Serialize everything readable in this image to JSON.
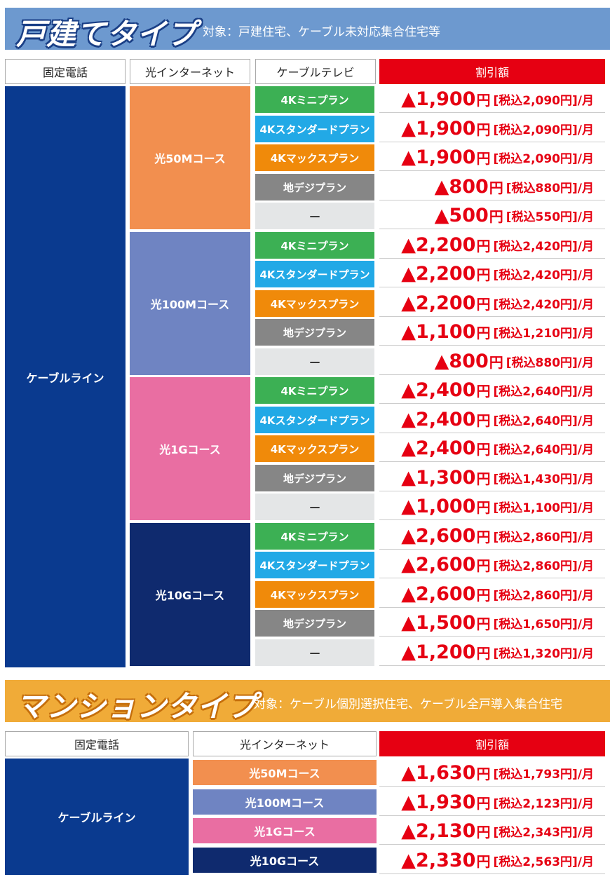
{
  "detached": {
    "title": "戸建てタイプ",
    "subtitle": "対象：戸建住宅、ケーブル未対応集合住宅等",
    "headers": [
      "固定電話",
      "光インターネット",
      "ケーブルテレビ",
      "割引額"
    ],
    "phone": "ケーブルライン",
    "courses": [
      {
        "name": "光50Mコース",
        "color": "#f28f4f",
        "rows": [
          {
            "plan": "4Kミニプラン",
            "style": "green",
            "amount": "▲1,900",
            "yen": "円",
            "tax": "[税込2,090円]/月"
          },
          {
            "plan": "4Kスタンダードプラン",
            "style": "cyan",
            "amount": "▲1,900",
            "yen": "円",
            "tax": "[税込2,090円]/月"
          },
          {
            "plan": "4Kマックスプラン",
            "style": "orange",
            "amount": "▲1,900",
            "yen": "円",
            "tax": "[税込2,090円]/月"
          },
          {
            "plan": "地デジプラン",
            "style": "gray",
            "amount": "▲800",
            "yen": "円",
            "tax": "[税込880円]/月"
          },
          {
            "plan": "—",
            "style": "light",
            "amount": "▲500",
            "yen": "円",
            "tax": "[税込550円]/月"
          }
        ]
      },
      {
        "name": "光100Mコース",
        "color": "#6f84c2",
        "rows": [
          {
            "plan": "4Kミニプラン",
            "style": "green",
            "amount": "▲2,200",
            "yen": "円",
            "tax": "[税込2,420円]/月"
          },
          {
            "plan": "4Kスタンダードプラン",
            "style": "cyan",
            "amount": "▲2,200",
            "yen": "円",
            "tax": "[税込2,420円]/月"
          },
          {
            "plan": "4Kマックスプラン",
            "style": "orange",
            "amount": "▲2,200",
            "yen": "円",
            "tax": "[税込2,420円]/月"
          },
          {
            "plan": "地デジプラン",
            "style": "gray",
            "amount": "▲1,100",
            "yen": "円",
            "tax": "[税込1,210円]/月"
          },
          {
            "plan": "—",
            "style": "light",
            "amount": "▲800",
            "yen": "円",
            "tax": "[税込880円]/月"
          }
        ]
      },
      {
        "name": "光1Gコース",
        "color": "#e96ea2",
        "rows": [
          {
            "plan": "4Kミニプラン",
            "style": "green",
            "amount": "▲2,400",
            "yen": "円",
            "tax": "[税込2,640円]/月"
          },
          {
            "plan": "4Kスタンダードプラン",
            "style": "cyan",
            "amount": "▲2,400",
            "yen": "円",
            "tax": "[税込2,640円]/月"
          },
          {
            "plan": "4Kマックスプラン",
            "style": "orange",
            "amount": "▲2,400",
            "yen": "円",
            "tax": "[税込2,640円]/月"
          },
          {
            "plan": "地デジプラン",
            "style": "gray",
            "amount": "▲1,300",
            "yen": "円",
            "tax": "[税込1,430円]/月"
          },
          {
            "plan": "—",
            "style": "light",
            "amount": "▲1,000",
            "yen": "円",
            "tax": "[税込1,100円]/月"
          }
        ]
      },
      {
        "name": "光10Gコース",
        "color": "#0f2a6e",
        "rows": [
          {
            "plan": "4Kミニプラン",
            "style": "green",
            "amount": "▲2,600",
            "yen": "円",
            "tax": "[税込2,860円]/月"
          },
          {
            "plan": "4Kスタンダードプラン",
            "style": "cyan",
            "amount": "▲2,600",
            "yen": "円",
            "tax": "[税込2,860円]/月"
          },
          {
            "plan": "4Kマックスプラン",
            "style": "orange",
            "amount": "▲2,600",
            "yen": "円",
            "tax": "[税込2,860円]/月"
          },
          {
            "plan": "地デジプラン",
            "style": "gray",
            "amount": "▲1,500",
            "yen": "円",
            "tax": "[税込1,650円]/月"
          },
          {
            "plan": "—",
            "style": "light",
            "amount": "▲1,200",
            "yen": "円",
            "tax": "[税込1,320円]/月"
          }
        ]
      }
    ]
  },
  "mansion": {
    "title": "マンションタイプ",
    "subtitle": "対象：ケーブル個別選択住宅、ケーブル全戸導入集合住宅",
    "headers": [
      "固定電話",
      "光インターネット",
      "割引額"
    ],
    "phone": "ケーブルライン",
    "courses": [
      {
        "name": "光50Mコース",
        "color": "#f28f4f",
        "amount": "▲1,630",
        "yen": "円",
        "tax": "[税込1,793円]/月"
      },
      {
        "name": "光100Mコース",
        "color": "#6f84c2",
        "amount": "▲1,930",
        "yen": "円",
        "tax": "[税込2,123円]/月"
      },
      {
        "name": "光1Gコース",
        "color": "#e96ea2",
        "amount": "▲2,130",
        "yen": "円",
        "tax": "[税込2,343円]/月"
      },
      {
        "name": "光10Gコース",
        "color": "#0f2a6e",
        "amount": "▲2,330",
        "yen": "円",
        "tax": "[税込2,563円]/月"
      }
    ]
  },
  "colors": {
    "phone_bg": "#0a3a8f",
    "discount_red": "#e60012",
    "detached_banner": "#6d99cf",
    "mansion_banner": "#f0ab38"
  }
}
